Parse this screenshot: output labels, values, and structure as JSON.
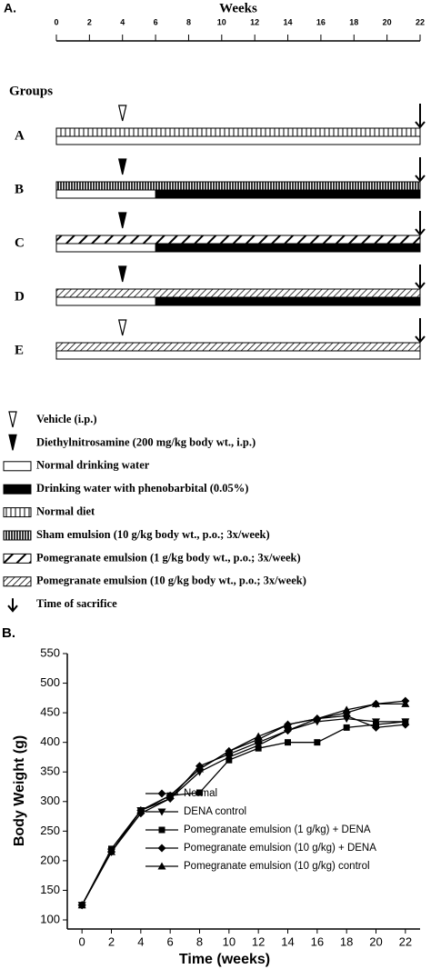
{
  "panel_a": {
    "label": "A.",
    "title": "Weeks",
    "weeks": [
      0,
      2,
      4,
      6,
      8,
      10,
      12,
      14,
      16,
      18,
      20,
      22
    ],
    "groups_title": "Groups",
    "injection_week": 4,
    "phenobarbital_week": 6,
    "sacrifice_week": 22,
    "groups": [
      {
        "label": "A",
        "injection": 0,
        "feed": 4,
        "phenobarbital": false
      },
      {
        "label": "B",
        "injection": 1,
        "feed": 5,
        "phenobarbital": true
      },
      {
        "label": "C",
        "injection": 1,
        "feed": 6,
        "phenobarbital": true
      },
      {
        "label": "D",
        "injection": 1,
        "feed": 7,
        "phenobarbital": true
      },
      {
        "label": "E",
        "injection": 0,
        "feed": 7,
        "phenobarbital": false
      }
    ],
    "legend": [
      "Vehicle (i.p.)",
      "Diethylnitrosamine (200 mg/kg body wt., i.p.)",
      "Normal drinking water",
      "Drinking water with phenobarbital (0.05%)",
      "Normal diet",
      "Sham emulsion (10 g/kg body wt., p.o.; 3x/week)",
      "Pomegranate emulsion (1 g/kg body wt., p.o.; 3x/week)",
      "Pomegranate emulsion (10 g/kg body wt., p.o.; 3x/week)",
      "Time of sacrifice"
    ]
  },
  "chart_data": {
    "type": "line",
    "label": "B.",
    "x_label": "Time (weeks)",
    "y_label": "Body Weight (g)",
    "x": [
      0,
      2,
      4,
      6,
      8,
      10,
      12,
      14,
      16,
      18,
      20,
      22
    ],
    "xlim": [
      -1,
      23
    ],
    "xticks": [
      0,
      2,
      4,
      6,
      8,
      10,
      12,
      14,
      16,
      18,
      20,
      22
    ],
    "ylim": [
      100,
      550
    ],
    "yticks": [
      100,
      150,
      200,
      250,
      300,
      350,
      400,
      450,
      500,
      550
    ],
    "series": [
      {
        "name": "Normal",
        "color": "#000000",
        "marker": "diamond",
        "values": [
          125,
          215,
          285,
          310,
          355,
          385,
          405,
          430,
          440,
          450,
          465,
          470
        ]
      },
      {
        "name": "DENA control",
        "color": "#000000",
        "marker": "triangle-down",
        "values": [
          125,
          215,
          285,
          305,
          350,
          375,
          395,
          420,
          435,
          440,
          435,
          435
        ]
      },
      {
        "name": "Pomegranate emulsion (1 g/kg) + DENA",
        "color": "#000000",
        "marker": "square",
        "values": [
          125,
          220,
          285,
          310,
          315,
          370,
          390,
          400,
          400,
          425,
          430,
          435
        ]
      },
      {
        "name": "Pomegranate emulsion (10 g/kg) + DENA",
        "color": "#000000",
        "marker": "diamond",
        "values": [
          125,
          215,
          280,
          305,
          360,
          380,
          400,
          420,
          440,
          445,
          425,
          430
        ]
      },
      {
        "name": "Pomegranate emulsion (10 g/kg) control",
        "color": "#000000",
        "marker": "triangle-up",
        "values": [
          125,
          215,
          285,
          310,
          355,
          385,
          410,
          430,
          440,
          455,
          465,
          465
        ]
      }
    ]
  }
}
